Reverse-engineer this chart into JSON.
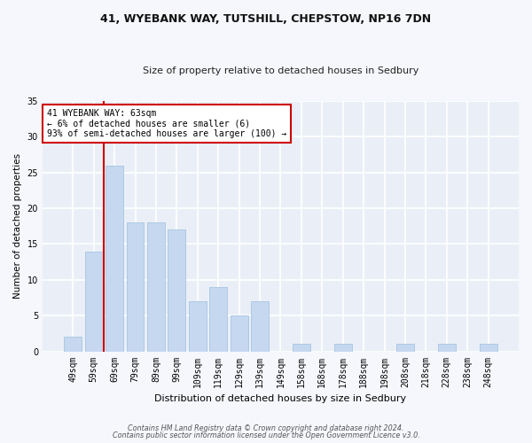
{
  "title1": "41, WYEBANK WAY, TUTSHILL, CHEPSTOW, NP16 7DN",
  "title2": "Size of property relative to detached houses in Sedbury",
  "xlabel": "Distribution of detached houses by size in Sedbury",
  "ylabel": "Number of detached properties",
  "categories": [
    "49sqm",
    "59sqm",
    "69sqm",
    "79sqm",
    "89sqm",
    "99sqm",
    "109sqm",
    "119sqm",
    "129sqm",
    "139sqm",
    "149sqm",
    "158sqm",
    "168sqm",
    "178sqm",
    "188sqm",
    "198sqm",
    "208sqm",
    "218sqm",
    "228sqm",
    "238sqm",
    "248sqm"
  ],
  "values": [
    2,
    14,
    26,
    18,
    18,
    17,
    7,
    9,
    5,
    7,
    0,
    1,
    0,
    1,
    0,
    0,
    1,
    0,
    1,
    0,
    1
  ],
  "bar_color": "#c5d8f0",
  "bar_edge_color": "#a8c4e0",
  "annotation_line1": "41 WYEBANK WAY: 63sqm",
  "annotation_line2": "← 6% of detached houses are smaller (6)",
  "annotation_line3": "93% of semi-detached houses are larger (100) →",
  "annotation_box_color": "#ffffff",
  "annotation_box_edge_color": "#cc0000",
  "vline_x": 1.5,
  "vline_color": "#cc0000",
  "ylim": [
    0,
    35
  ],
  "yticks": [
    0,
    5,
    10,
    15,
    20,
    25,
    30,
    35
  ],
  "bg_color": "#eaeff7",
  "grid_color": "#ffffff",
  "footer1": "Contains HM Land Registry data © Crown copyright and database right 2024.",
  "footer2": "Contains public sector information licensed under the Open Government Licence v3.0.",
  "fig_bg_color": "#f5f7fc"
}
